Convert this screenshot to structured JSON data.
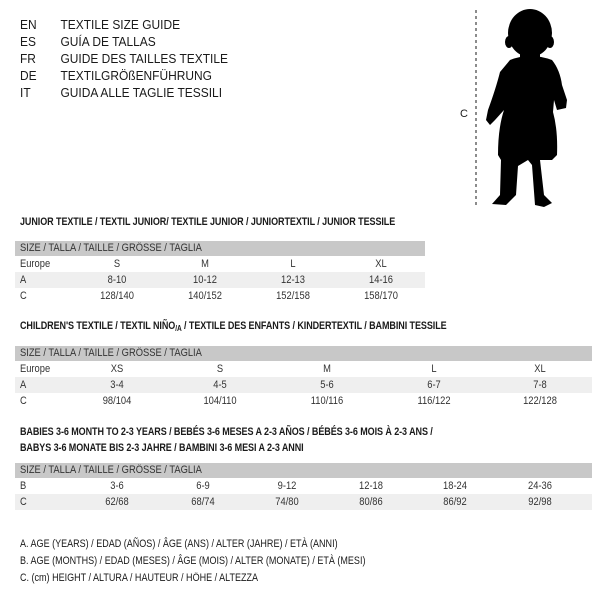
{
  "title_lines": [
    {
      "code": "EN",
      "text": "TEXTILE SIZE GUIDE"
    },
    {
      "code": "ES",
      "text": "GUÍA DE TALLAS"
    },
    {
      "code": "FR",
      "text": "GUIDE DES TAILLES TEXTILE"
    },
    {
      "code": "DE",
      "text": "TEXTILGRÖßENFÜHRUNG"
    },
    {
      "code": "IT",
      "text": "GUIDA ALLE TAGLIE TESSILI"
    }
  ],
  "figure": {
    "measure_label": "C",
    "icon": "baby-silhouette"
  },
  "junior": {
    "title": "JUNIOR TEXTILE / TEXTIL JUNIOR/ TEXTILE JUNIOR / JUNIORTEXTIL / JUNIOR TESSILE",
    "header": "SIZE / TALLA / TAILLE / GRÖSSE / TAGLIA",
    "rows": [
      {
        "label": "Europe",
        "values": [
          "S",
          "M",
          "L",
          "XL"
        ]
      },
      {
        "label": "A",
        "values": [
          "8-10",
          "10-12",
          "12-13",
          "14-16"
        ]
      },
      {
        "label": "C",
        "values": [
          "128/140",
          "140/152",
          "152/158",
          "158/170"
        ]
      }
    ]
  },
  "children": {
    "title_a": "CHILDREN'S TEXTILE / TEXTIL NIÑO",
    "title_sub": "/A",
    "title_b": " / TEXTILE DES ENFANTS / KINDERTEXTIL / BAMBINI TESSILE",
    "header": "SIZE / TALLA / TAILLE / GRÖSSE / TAGLIA",
    "rows": [
      {
        "label": "Europe",
        "values": [
          "XS",
          "S",
          "M",
          "L",
          "XL"
        ]
      },
      {
        "label": "A",
        "values": [
          "3-4",
          "4-5",
          "5-6",
          "6-7",
          "7-8"
        ]
      },
      {
        "label": "C",
        "values": [
          "98/104",
          "104/110",
          "110/116",
          "116/122",
          "122/128"
        ]
      }
    ]
  },
  "babies": {
    "title_line1": "BABIES 3-6 MONTH TO 2-3 YEARS / BEBÉS 3-6 MESES A 2-3 AÑOS / BÉBÉS 3-6 MOIS À 2-3 ANS /",
    "title_line2": "BABYS 3-6 MONATE BIS 2-3 JAHRE / BAMBINI 3-6 MESI A 2-3 ANNI",
    "header": "SIZE / TALLA / TAILLE / GRÖSSE / TAGLIA",
    "rows": [
      {
        "label": "B",
        "values": [
          "3-6",
          "6-9",
          "9-12",
          "12-18",
          "18-24",
          "24-36"
        ]
      },
      {
        "label": "C",
        "values": [
          "62/68",
          "68/74",
          "74/80",
          "80/86",
          "86/92",
          "92/98"
        ]
      }
    ]
  },
  "legend": [
    "A. AGE (YEARS) / EDAD (AÑOS) / ÂGE (ANS) / ALTER (JAHRE) / ETÀ (ANNI)",
    "B. AGE (MONTHS) / EDAD (MESES) / ÂGE (MOIS) / ALTER (MONATE) / ETÀ (MESI)",
    "C. (cm) HEIGHT / ALTURA / HAUTEUR / HÖHE / ALTEZZA"
  ],
  "colors": {
    "header_bg": "#c8c8c8",
    "shade_bg": "#efefef"
  }
}
